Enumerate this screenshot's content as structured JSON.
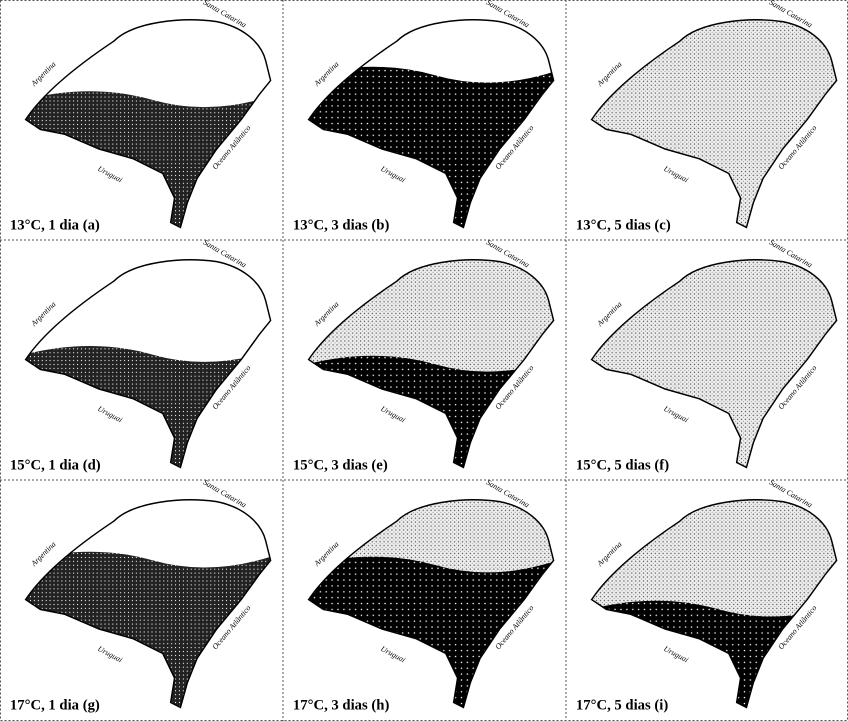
{
  "panels": [
    {
      "caption": "13°C, 1 dia (a)",
      "labels": [
        "Argentina",
        "Santa Catarina",
        "Uruguai",
        "Oceano Atlântico"
      ]
    },
    {
      "caption": "13°C, 3 dias (b)",
      "labels": [
        "Argentina",
        "Santa Catarina",
        "Uruguai",
        "Oceano Atlântico"
      ]
    },
    {
      "caption": "13°C, 5 dias (c)",
      "labels": [
        "Argentina",
        "Santa Catarina",
        "Uruguai",
        "Oceano Atlântico"
      ]
    },
    {
      "caption": "15°C, 1 dia (d)",
      "labels": [
        "Argentina",
        "Santa Catarina",
        "Uruguai",
        "Oceano Atlântico"
      ]
    },
    {
      "caption": "15°C, 3 dias (e)",
      "labels": [
        "Argentina",
        "Santa Catarina",
        "Uruguai",
        "Oceano Atlântico"
      ]
    },
    {
      "caption": "15°C, 5 dias (f)",
      "labels": [
        "Argentina",
        "Santa Catarina",
        "Uruguai",
        "Oceano Atlântico"
      ]
    },
    {
      "caption": "17°C, 1 dia (g)",
      "labels": [
        "Argentina",
        "Santa Catarina",
        "Uruguai",
        "Oceano Atlântico"
      ]
    },
    {
      "caption": "17°C, 3 dias (h)",
      "labels": [
        "Argentina",
        "Santa Catarina",
        "Uruguai",
        "Oceano Atlântico"
      ]
    },
    {
      "caption": "17°C, 5 dias (i)",
      "labels": [
        "Argentina",
        "Santa Catarina",
        "Uruguai",
        "Oceano Atlântico"
      ]
    }
  ]
}
